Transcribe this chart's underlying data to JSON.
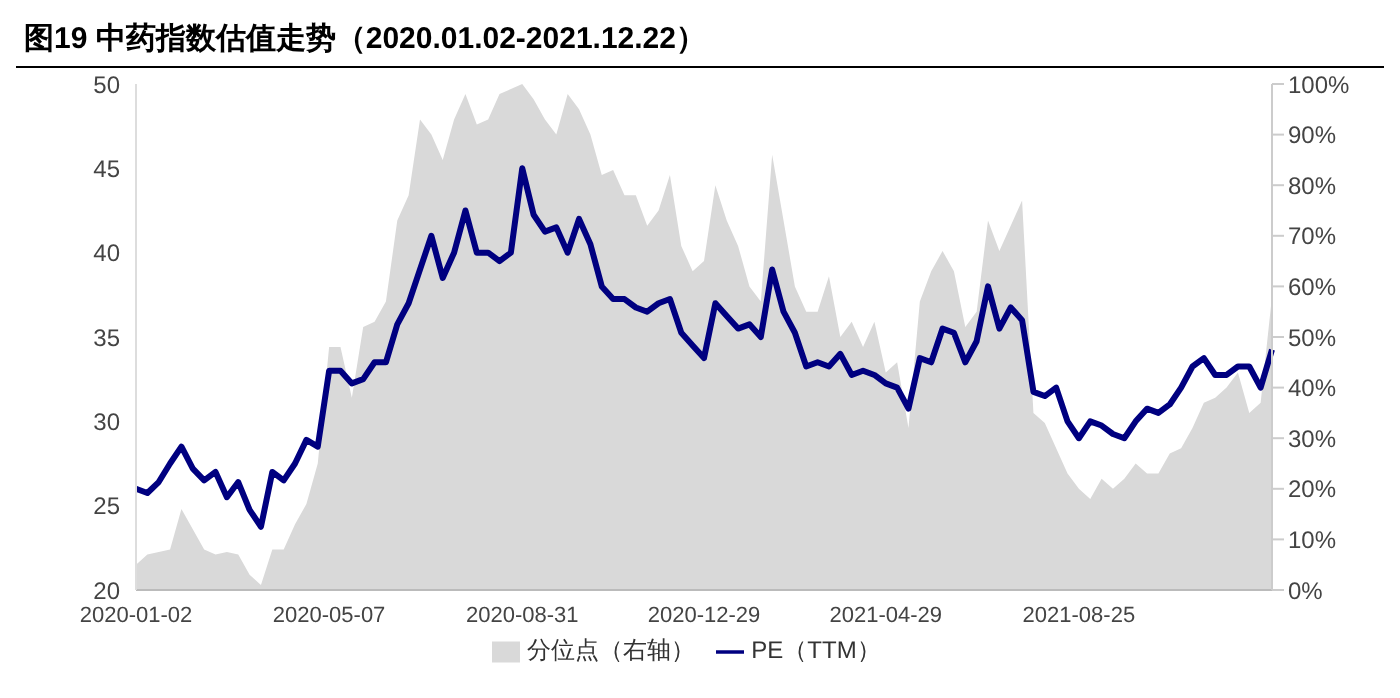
{
  "chart_data": {
    "type": "line",
    "title": "图19 中药指数估值走势（2020.01.02-2021.12.22）",
    "categories": [
      "2020-01-02",
      null,
      null,
      null,
      null,
      null,
      null,
      null,
      null,
      null,
      null,
      null,
      null,
      null,
      null,
      null,
      null,
      "2020-05-07",
      null,
      null,
      null,
      null,
      null,
      null,
      null,
      null,
      null,
      null,
      null,
      null,
      null,
      null,
      null,
      null,
      "2020-08-31",
      null,
      null,
      null,
      null,
      null,
      null,
      null,
      null,
      null,
      null,
      null,
      null,
      null,
      null,
      null,
      "2020-12-29",
      null,
      null,
      null,
      null,
      null,
      null,
      null,
      null,
      null,
      null,
      null,
      null,
      null,
      null,
      null,
      "2021-04-29",
      null,
      null,
      null,
      null,
      null,
      null,
      null,
      null,
      null,
      null,
      null,
      null,
      null,
      null,
      null,
      null,
      "2021-08-25",
      null,
      null,
      null,
      null,
      null,
      null,
      null,
      null,
      null,
      null,
      null,
      null,
      null,
      null,
      null,
      null,
      null
    ],
    "series": [
      {
        "name": "分位点（右轴）",
        "type": "area",
        "axis": "y2",
        "color": "#d9d9d9",
        "values": [
          5,
          7,
          7.5,
          8,
          16,
          12,
          8,
          7,
          7.5,
          7,
          3,
          1,
          8,
          8,
          13,
          17,
          25,
          48,
          48,
          38,
          52,
          53,
          57,
          73,
          78,
          93,
          90,
          85,
          93,
          98,
          92,
          93,
          98,
          99,
          100,
          97,
          93,
          90,
          98,
          95,
          90,
          82,
          83,
          78,
          78,
          72,
          75,
          82,
          68,
          63,
          65,
          80,
          73,
          68,
          60,
          57,
          86,
          73,
          60,
          55,
          55,
          62,
          50,
          53,
          48,
          53,
          43,
          45,
          32,
          57,
          63,
          67,
          63,
          52,
          55,
          73,
          67,
          72,
          77,
          35,
          33,
          28,
          23,
          20,
          18,
          22,
          20,
          22,
          25,
          23,
          23,
          27,
          28,
          32,
          37,
          38,
          40,
          43,
          35,
          37,
          58
        ]
      },
      {
        "name": "PE（TTM）",
        "color": "#000080",
        "values": [
          26,
          25.75,
          26.4,
          27.5,
          28.5,
          27.2,
          26.5,
          27,
          25.5,
          26.4,
          24.75,
          23.75,
          27,
          26.5,
          27.5,
          28.9,
          28.5,
          33,
          33,
          32.25,
          32.5,
          33.5,
          33.5,
          35.75,
          37,
          39,
          41,
          38.5,
          40,
          42.5,
          40,
          40,
          39.5,
          40,
          45,
          42.25,
          41.25,
          41.5,
          40,
          42,
          40.5,
          38,
          37.25,
          37.25,
          36.75,
          36.5,
          37,
          37.25,
          35.25,
          34.5,
          33.75,
          37,
          36.25,
          35.5,
          35.75,
          35,
          39,
          36.5,
          35.25,
          33.25,
          33.5,
          33.25,
          34,
          32.75,
          33,
          32.75,
          32.25,
          32,
          30.75,
          33.75,
          33.5,
          35.5,
          35.25,
          33.5,
          34.75,
          38,
          35.5,
          36.75,
          36,
          31.75,
          31.5,
          32,
          30,
          29,
          30,
          29.75,
          29.25,
          29,
          30,
          30.75,
          30.5,
          31,
          32,
          33.25,
          33.75,
          32.75,
          32.75,
          33.25,
          33.25,
          32,
          34.25
        ]
      }
    ],
    "ylim": [
      20,
      50
    ],
    "yticks": [
      20,
      25,
      30,
      35,
      40,
      45,
      50
    ],
    "y2lim": [
      0,
      100
    ],
    "y2ticks": [
      {
        "value": 0,
        "label": "0%"
      },
      {
        "value": 10,
        "label": "10%"
      },
      {
        "value": 20,
        "label": "20%"
      },
      {
        "value": 30,
        "label": "30%"
      },
      {
        "value": 40,
        "label": "40%"
      },
      {
        "value": 50,
        "label": "50%"
      },
      {
        "value": 60,
        "label": "60%"
      },
      {
        "value": 70,
        "label": "70%"
      },
      {
        "value": 80,
        "label": "80%"
      },
      {
        "value": 90,
        "label": "90%"
      },
      {
        "value": 100,
        "label": "100%"
      }
    ],
    "legend": "bottom"
  }
}
